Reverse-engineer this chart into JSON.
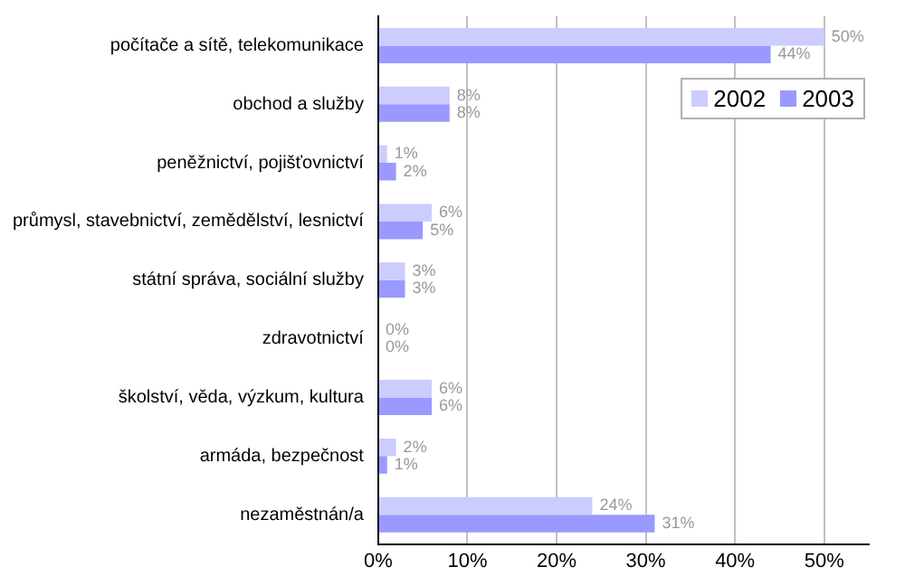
{
  "chart_data": {
    "type": "bar",
    "orientation": "horizontal",
    "categories": [
      "počítače a sítě, telekomunikace",
      "obchod a služby",
      "peněžnictví, pojišťovnictví",
      "průmysl, stavebnictví, zemědělství, lesnictví",
      "státní správa, sociální služby",
      "zdravotnictví",
      "školství, věda, výzkum, kultura",
      "armáda, bezpečnost",
      "nezaměstnán/a"
    ],
    "series": [
      {
        "name": "2002",
        "color": "#ccccff",
        "values": [
          50,
          8,
          1,
          6,
          3,
          0,
          6,
          2,
          24
        ],
        "value_labels": [
          "50%",
          "8%",
          "1%",
          "6%",
          "3%",
          "0%",
          "6%",
          "2%",
          "24%"
        ]
      },
      {
        "name": "2003",
        "color": "#9999ff",
        "values": [
          44,
          8,
          2,
          5,
          3,
          0,
          6,
          1,
          31
        ],
        "value_labels": [
          "44%",
          "8%",
          "2%",
          "5%",
          "3%",
          "0%",
          "6%",
          "1%",
          "31%"
        ]
      }
    ],
    "xlim": [
      0,
      55
    ],
    "xticks": [
      {
        "value": 0,
        "label": "0%"
      },
      {
        "value": 10,
        "label": "10%"
      },
      {
        "value": 20,
        "label": "20%"
      },
      {
        "value": 30,
        "label": "30%"
      },
      {
        "value": 40,
        "label": "40%"
      },
      {
        "value": 50,
        "label": "50%"
      }
    ],
    "grid": "x",
    "legend": "top right"
  }
}
